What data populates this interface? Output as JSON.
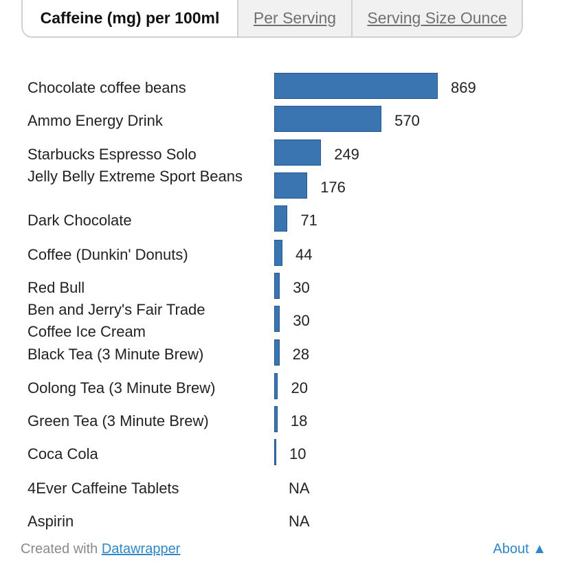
{
  "tabs": [
    {
      "label": "Caffeine (mg) per 100ml",
      "active": true
    },
    {
      "label": "Per Serving",
      "active": false
    },
    {
      "label": "Serving Size Ounce",
      "active": false
    }
  ],
  "chart_data": {
    "type": "bar",
    "orientation": "horizontal",
    "title": "",
    "xlabel": "",
    "ylabel": "",
    "bar_color": "#3a74b1",
    "categories": [
      "Chocolate coffee beans",
      "Ammo Energy Drink",
      "Starbucks Espresso Solo",
      "Jelly Belly Extreme Sport Beans",
      "Dark Chocolate",
      "Coffee (Dunkin' Donuts)",
      "Red Bull",
      "Ben and Jerry's Fair Trade Coffee Ice Cream",
      "Black Tea (3 Minute Brew)",
      "Oolong Tea (3 Minute Brew)",
      "Green Tea (3 Minute Brew)",
      "Coca Cola",
      "4Ever Caffeine Tablets",
      "Aspirin"
    ],
    "values": [
      869,
      570,
      249,
      176,
      71,
      44,
      30,
      30,
      28,
      20,
      18,
      10,
      null,
      null
    ],
    "value_labels": [
      "869",
      "570",
      "249",
      "176",
      "71",
      "44",
      "30",
      "30",
      "28",
      "20",
      "18",
      "10",
      "NA",
      "NA"
    ]
  },
  "footer": {
    "created_prefix": "Created with ",
    "created_link": "Datawrapper",
    "about": "About ▲"
  }
}
